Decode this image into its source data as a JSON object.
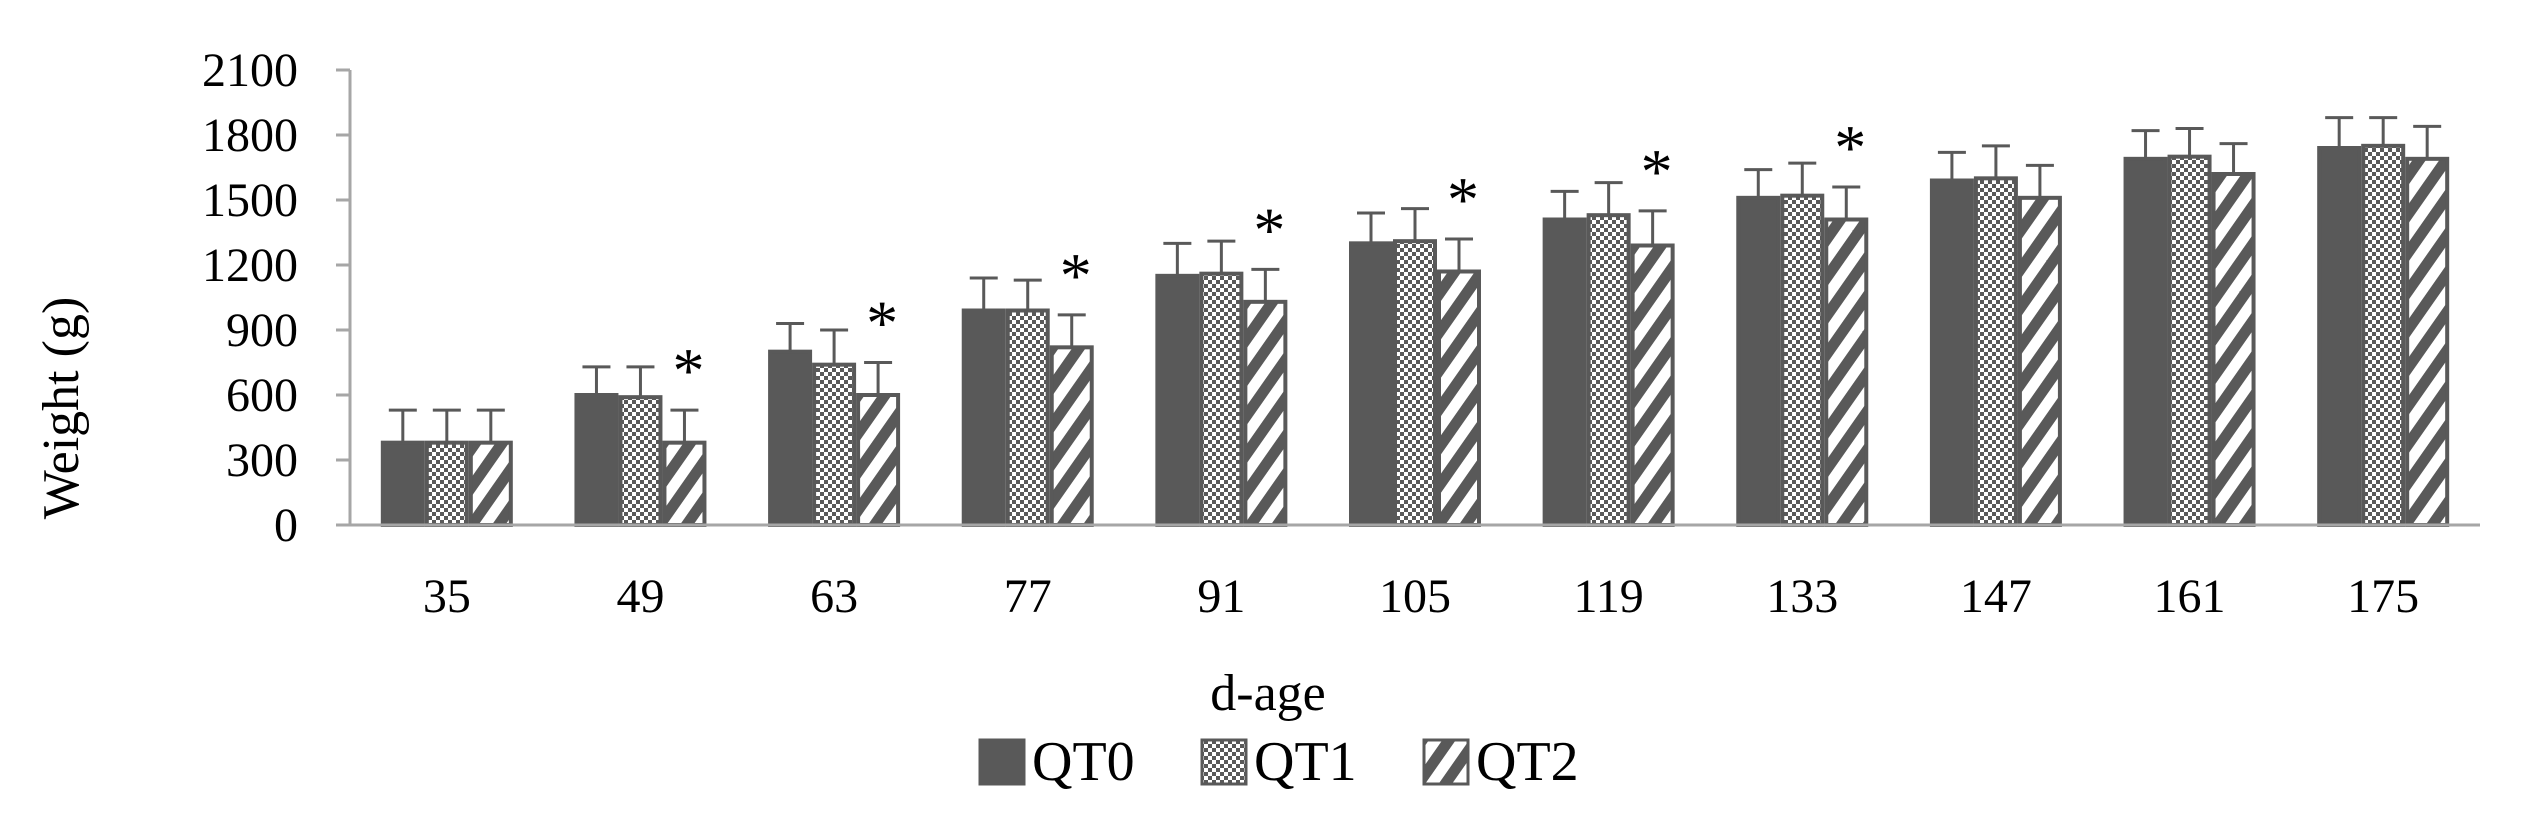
{
  "chart_data": {
    "type": "bar",
    "title": "",
    "xlabel": "d-age",
    "ylabel": "Weight (g)",
    "ylim": [
      0,
      2100
    ],
    "yticks": [
      0,
      300,
      600,
      900,
      1200,
      1500,
      1800,
      2100
    ],
    "grid": false,
    "legend_position": "bottom",
    "categories": [
      "35",
      "49",
      "63",
      "77",
      "91",
      "105",
      "119",
      "133",
      "147",
      "161",
      "175"
    ],
    "series": [
      {
        "name": "QT0",
        "pattern": "solid",
        "color": "#595959",
        "values": [
          380,
          600,
          800,
          990,
          1150,
          1300,
          1410,
          1510,
          1590,
          1690,
          1740
        ],
        "error": [
          150,
          130,
          130,
          150,
          150,
          140,
          130,
          130,
          130,
          130,
          140
        ]
      },
      {
        "name": "QT1",
        "pattern": "checker",
        "color": "#595959",
        "values": [
          380,
          590,
          740,
          990,
          1160,
          1310,
          1430,
          1520,
          1600,
          1700,
          1750
        ],
        "error": [
          150,
          140,
          160,
          140,
          150,
          150,
          150,
          150,
          150,
          130,
          130
        ]
      },
      {
        "name": "QT2",
        "pattern": "diagonal",
        "color": "#595959",
        "values": [
          380,
          380,
          600,
          820,
          1030,
          1170,
          1290,
          1410,
          1510,
          1620,
          1690
        ],
        "error": [
          150,
          150,
          150,
          150,
          150,
          150,
          160,
          150,
          150,
          140,
          150
        ]
      }
    ],
    "annotations": [
      {
        "category": "49",
        "series": "QT2",
        "text": "*"
      },
      {
        "category": "63",
        "series": "QT2",
        "text": "*"
      },
      {
        "category": "77",
        "series": "QT2",
        "text": "*"
      },
      {
        "category": "91",
        "series": "QT2",
        "text": "*"
      },
      {
        "category": "105",
        "series": "QT2",
        "text": "*"
      },
      {
        "category": "119",
        "series": "QT2",
        "text": "*"
      },
      {
        "category": "133",
        "series": "QT2",
        "text": "*"
      }
    ]
  }
}
